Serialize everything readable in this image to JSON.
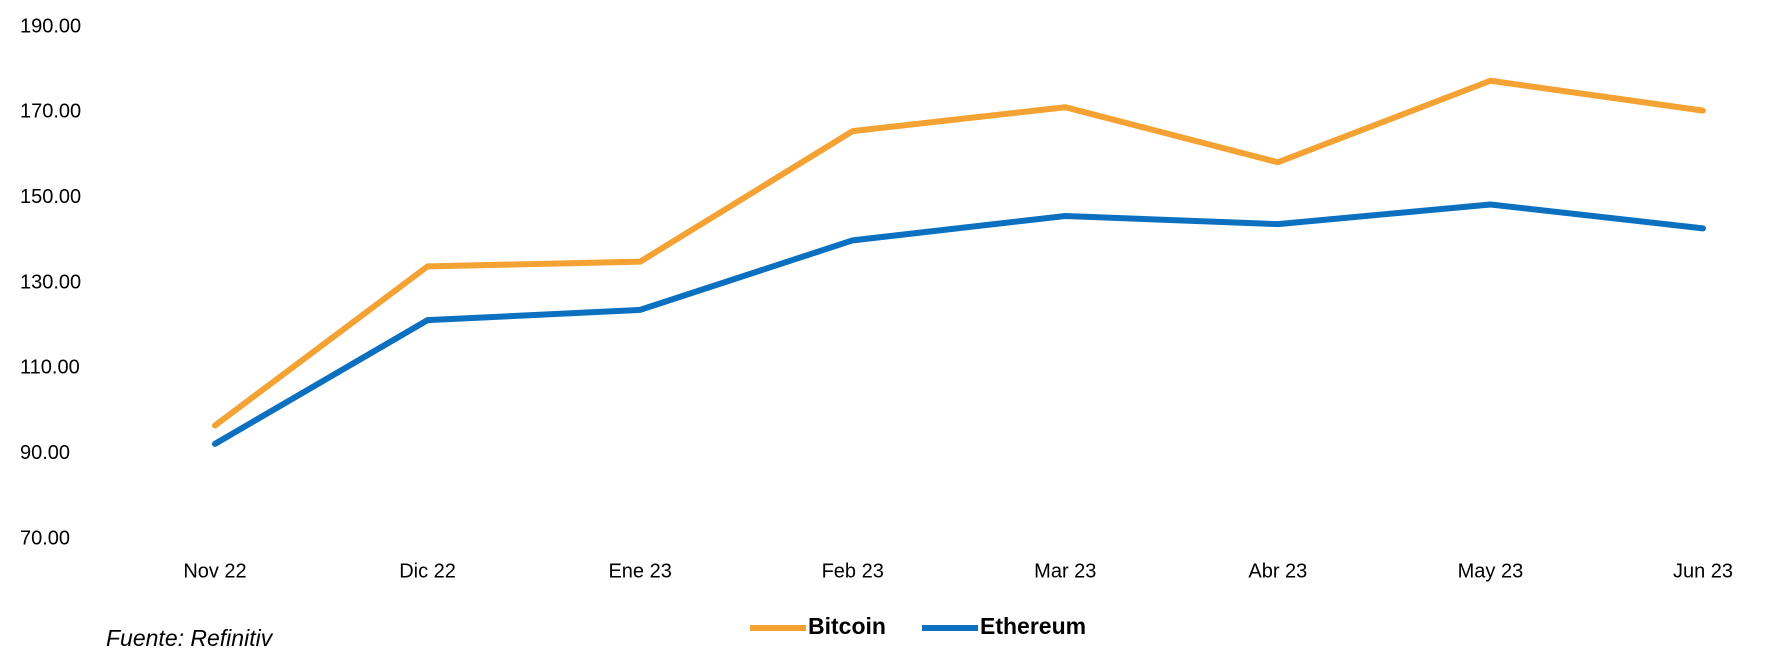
{
  "chart_data": {
    "type": "line",
    "categories": [
      "Nov 22",
      "Dic 22",
      "Ene 23",
      "Feb 23",
      "Mar 23",
      "Abr 23",
      "May 23",
      "Jun 23"
    ],
    "series": [
      {
        "name": "Bitcoin",
        "color": "#f4a234",
        "values": [
          96.6,
          133.9,
          135.0,
          165.6,
          171.2,
          158.3,
          177.4,
          170.4
        ]
      },
      {
        "name": "Ethereum",
        "color": "#0b70c0",
        "values": [
          92.3,
          121.3,
          123.7,
          140.0,
          145.7,
          143.8,
          148.4,
          142.8
        ]
      }
    ],
    "ylim": [
      70,
      190
    ],
    "yticks": [
      {
        "value": 70,
        "label": "70.00"
      },
      {
        "value": 90,
        "label": "90.00"
      },
      {
        "value": 110,
        "label": "110.00"
      },
      {
        "value": 130,
        "label": "130.00"
      },
      {
        "value": 150,
        "label": "150.00"
      },
      {
        "value": 170,
        "label": "170.00"
      },
      {
        "value": 190,
        "label": "190.00"
      }
    ],
    "grid": false,
    "legend": "bottom",
    "source": "Fuente: Refinitiv"
  }
}
